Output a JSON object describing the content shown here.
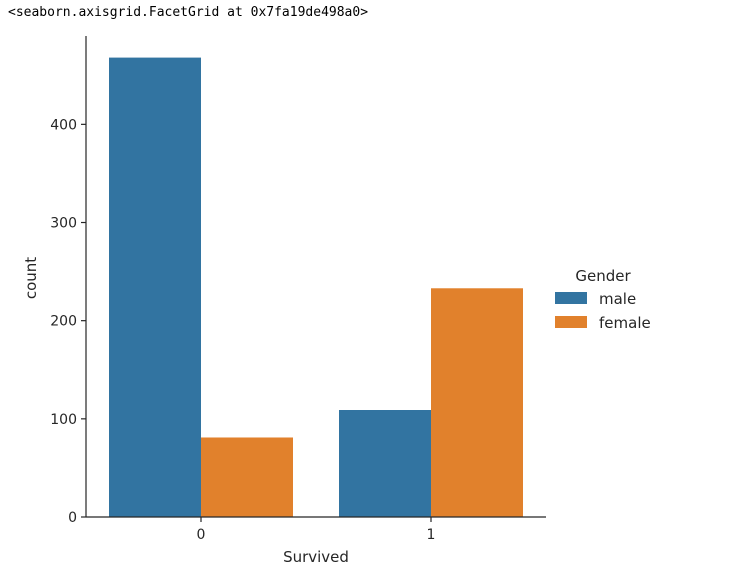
{
  "output": {
    "repr_text": "<seaborn.axisgrid.FacetGrid at 0x7fa19de498a0>"
  },
  "chart_data": {
    "type": "bar",
    "categories": [
      "0",
      "1"
    ],
    "series": [
      {
        "name": "male",
        "values": [
          468,
          109
        ],
        "color": "#3274a1"
      },
      {
        "name": "female",
        "values": [
          81,
          233
        ],
        "color": "#e1812c"
      }
    ],
    "xlabel": "Survived",
    "ylabel": "count",
    "ylim": [
      0,
      490
    ],
    "yticks": [
      0,
      100,
      200,
      300,
      400
    ],
    "legend": {
      "title": "Gender",
      "placement": "right"
    },
    "grid": false
  }
}
